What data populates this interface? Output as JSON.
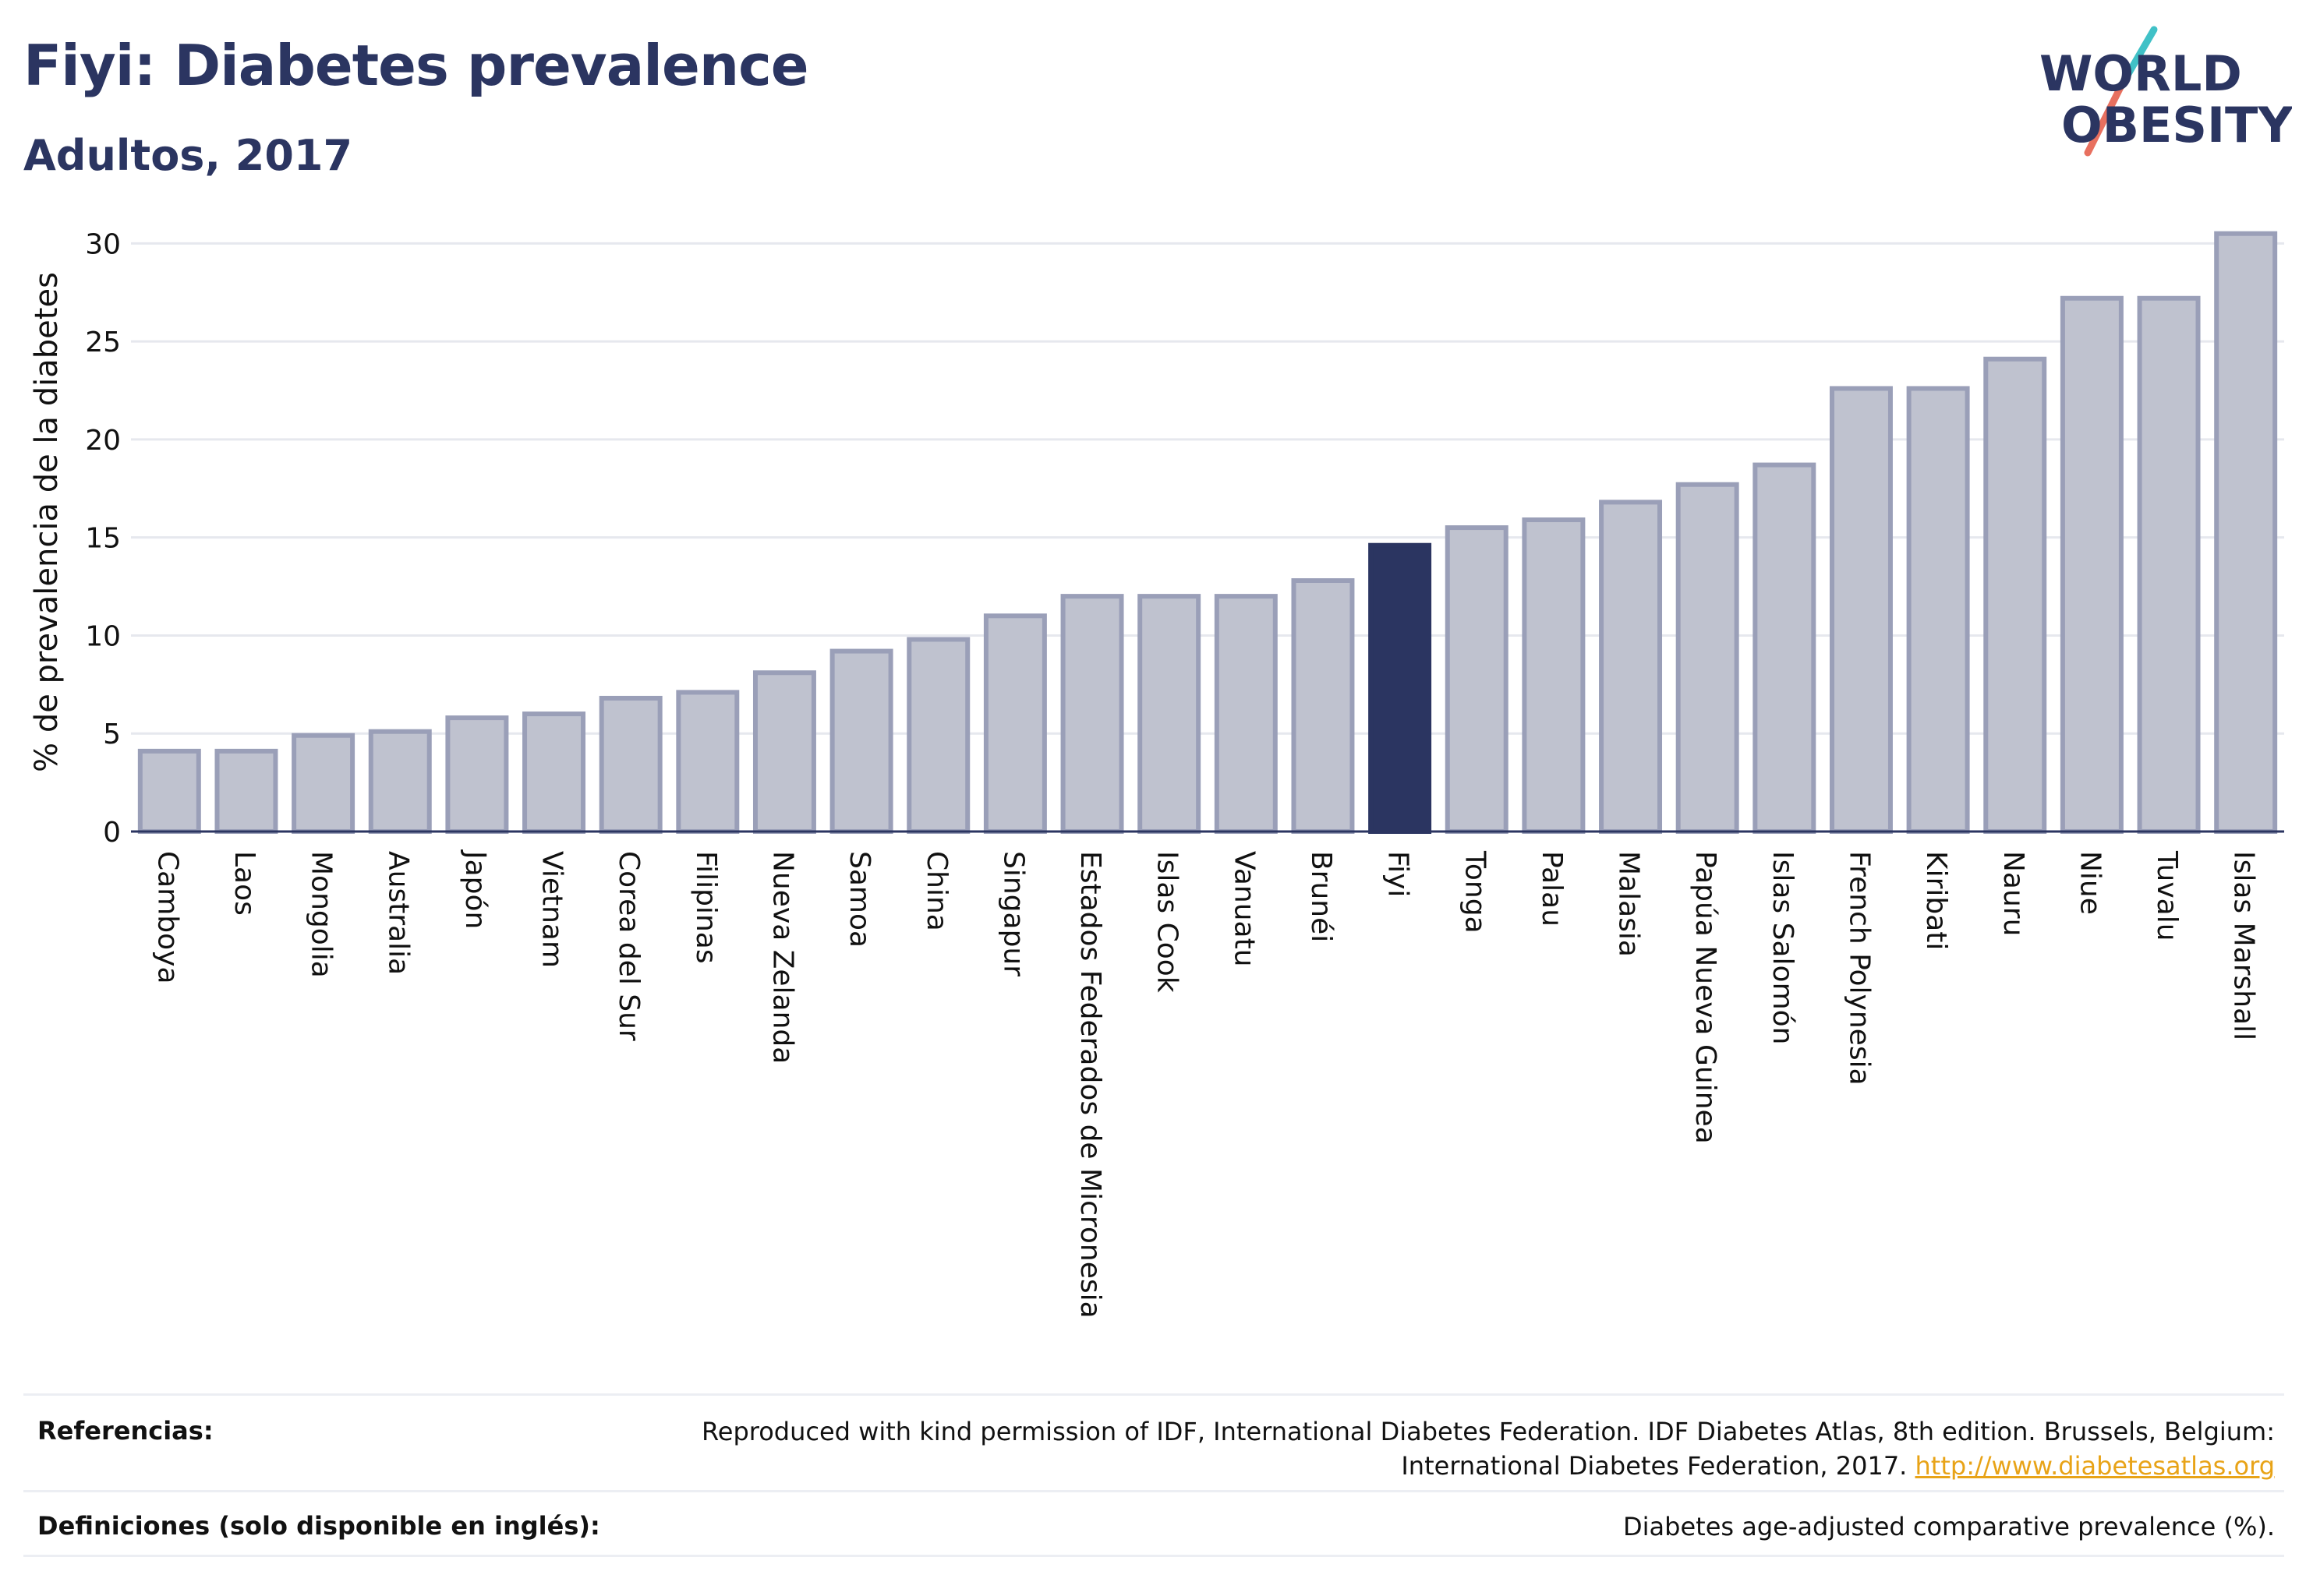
{
  "header": {
    "title": "Fiyi: Diabetes prevalence",
    "subtitle": "Adultos, 2017"
  },
  "logo": {
    "line1": "WORLD",
    "line2": "OBESITY",
    "colors": {
      "text": "#2b3561",
      "slash_red": "#e8705f",
      "slash_teal": "#40c1c7"
    }
  },
  "colors": {
    "bar": "#bfc2cf",
    "bar_border": "#9a9fb8",
    "highlight": "#2b3561",
    "grid": "#e6e8ee",
    "axis": "#2b3561"
  },
  "chart_data": {
    "type": "bar",
    "ylabel": "% de prevalencia de la diabetes",
    "ylim": [
      0,
      32
    ],
    "yticks": [
      0,
      5,
      10,
      15,
      20,
      25,
      30
    ],
    "grid": true,
    "highlight": "Fiyi",
    "categories": [
      "Camboya",
      "Laos",
      "Mongolia",
      "Australia",
      "Japón",
      "Vietnam",
      "Corea del Sur",
      "Filipinas",
      "Nueva Zelanda",
      "Samoa",
      "China",
      "Singapur",
      "Estados Federados de Micronesia",
      "Islas Cook",
      "Vanuatu",
      "Brunéi",
      "Fiyi",
      "Tonga",
      "Palau",
      "Malasia",
      "Papúa Nueva Guinea",
      "Islas Salomón",
      "French Polynesia",
      "Kiribati",
      "Nauru",
      "Niue",
      "Tuvalu",
      "Islas Marshall"
    ],
    "values": [
      4.1,
      4.1,
      4.9,
      5.1,
      5.8,
      6.0,
      6.8,
      7.1,
      8.1,
      9.2,
      9.8,
      11.0,
      12.0,
      12.0,
      12.0,
      12.8,
      14.6,
      15.5,
      15.9,
      16.8,
      17.7,
      18.7,
      22.6,
      22.6,
      24.1,
      27.2,
      27.2,
      30.5
    ]
  },
  "footer": {
    "references_label": "Referencias:",
    "references_line1": "Reproduced with kind permission of IDF, International Diabetes Federation. IDF Diabetes Atlas, 8th edition. Brussels, Belgium:",
    "references_line2": "International Diabetes Federation, 2017.",
    "references_link": "http://www.diabetesatlas.org",
    "definitions_label": "Definiciones (solo disponible en inglés):",
    "definitions_text": "Diabetes age-adjusted comparative prevalence (%)."
  }
}
